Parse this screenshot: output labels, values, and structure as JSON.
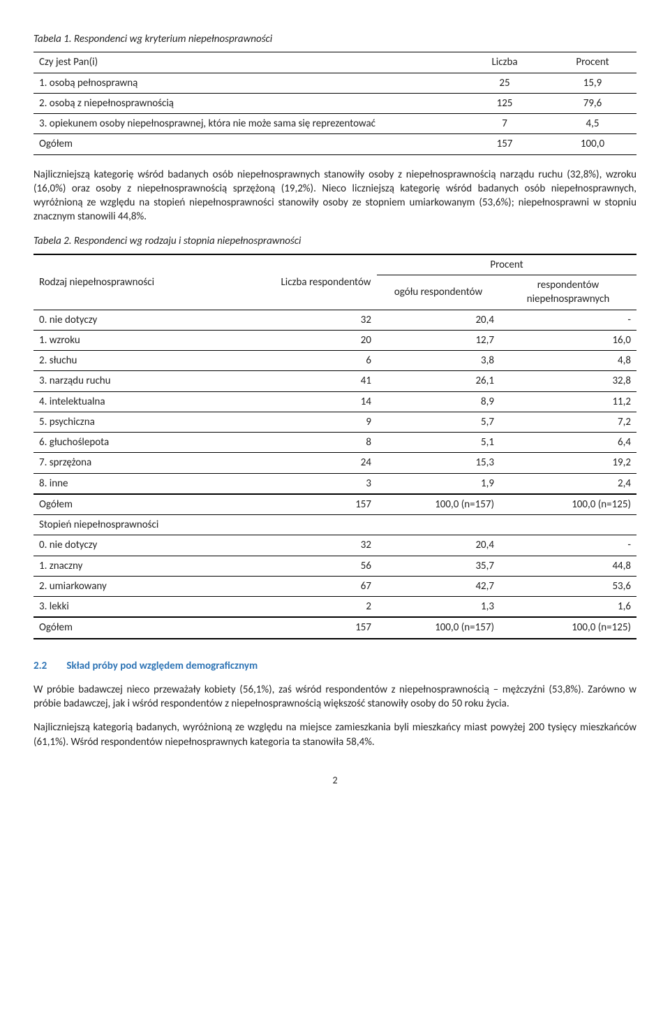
{
  "table1": {
    "title": "Tabela 1. Respondenci wg kryterium niepełnosprawności",
    "head": {
      "q": "Czy jest Pan(i)",
      "c1": "Liczba",
      "c2": "Procent"
    },
    "rows": [
      {
        "label": "1.   osobą pełnosprawną",
        "n": "25",
        "p": "15,9"
      },
      {
        "label": "2.   osobą z niepełnosprawnością",
        "n": "125",
        "p": "79,6"
      },
      {
        "label": "3.   opiekunem osoby niepełnosprawnej, która nie może sama się reprezentować",
        "n": "7",
        "p": "4,5"
      }
    ],
    "total": {
      "label": "Ogółem",
      "n": "157",
      "p": "100,0"
    }
  },
  "para1": "Najliczniejszą kategorię wśród badanych osób niepełnosprawnych stanowiły osoby z niepełnosprawnością narządu ruchu (32,8%), wzroku (16,0%) oraz osoby z niepełnosprawnością sprzężoną (19,2%). Nieco liczniejszą kategorię wśród badanych osób niepełnosprawnych, wyróżnioną ze względu na stopień niepełnosprawności stanowiły osoby ze stopniem umiarkowanym (53,6%); niepełnosprawni w stopniu znacznym stanowili 44,8%.",
  "table2": {
    "title": "Tabela 2. Respondenci wg rodzaju i stopnia niepełnosprawności",
    "head": {
      "rowlabel": "Rodzaj niepełnosprawności",
      "lic": "Liczba respondentów",
      "proc": "Procent",
      "c1": "ogółu respondentów",
      "c2": "respondentów niepełnosprawnych"
    },
    "rows_type": [
      {
        "label": "0.   nie dotyczy",
        "n": "32",
        "p1": "20,4",
        "p2": "-"
      },
      {
        "label": "1.   wzroku",
        "n": "20",
        "p1": "12,7",
        "p2": "16,0"
      },
      {
        "label": "2.   słuchu",
        "n": "6",
        "p1": "3,8",
        "p2": "4,8"
      },
      {
        "label": "3.   narządu ruchu",
        "n": "41",
        "p1": "26,1",
        "p2": "32,8"
      },
      {
        "label": "4.   intelektualna",
        "n": "14",
        "p1": "8,9",
        "p2": "11,2"
      },
      {
        "label": "5.   psychiczna",
        "n": "9",
        "p1": "5,7",
        "p2": "7,2"
      },
      {
        "label": "6.   głuchoślepota",
        "n": "8",
        "p1": "5,1",
        "p2": "6,4"
      },
      {
        "label": "7.   sprzężona",
        "n": "24",
        "p1": "15,3",
        "p2": "19,2"
      },
      {
        "label": "8.   inne",
        "n": "3",
        "p1": "1,9",
        "p2": "2,4"
      }
    ],
    "total1": {
      "label": "Ogółem",
      "n": "157",
      "p1": "100,0 (n=157)",
      "p2": "100,0 (n=125)"
    },
    "degree_label": "Stopień niepełnosprawności",
    "rows_degree": [
      {
        "label": " 0.   nie dotyczy",
        "n": "32",
        "p1": "20,4",
        "p2": "-"
      },
      {
        "label": " 1.   znaczny",
        "n": "56",
        "p1": "35,7",
        "p2": "44,8"
      },
      {
        "label": " 2.   umiarkowany",
        "n": "67",
        "p1": "42,7",
        "p2": "53,6"
      },
      {
        "label": " 3.   lekki",
        "n": "2",
        "p1": "1,3",
        "p2": "1,6"
      }
    ],
    "total2": {
      "label": "Ogółem",
      "n": "157",
      "p1": "100,0 (n=157)",
      "p2": "100,0 (n=125)"
    }
  },
  "section": {
    "num": "2.2",
    "title": "Skład próby pod względem demograficznym"
  },
  "para2": "W próbie badawczej nieco przeważały kobiety (56,1%), zaś wśród respondentów z niepełnosprawnością – mężczyźni (53,8%). Zarówno w próbie badawczej, jak i wśród respondentów z niepełnosprawnością większość stanowiły osoby do 50 roku życia.",
  "para3": "Najliczniejszą kategorią badanych, wyróżnioną ze względu na miejsce zamieszkania byli mieszkańcy miast powyżej 200 tysięcy mieszkańców (61,1%). Wśród respondentów niepełnosprawnych kategoria ta stanowiła 58,4%.",
  "pagenum": "2"
}
